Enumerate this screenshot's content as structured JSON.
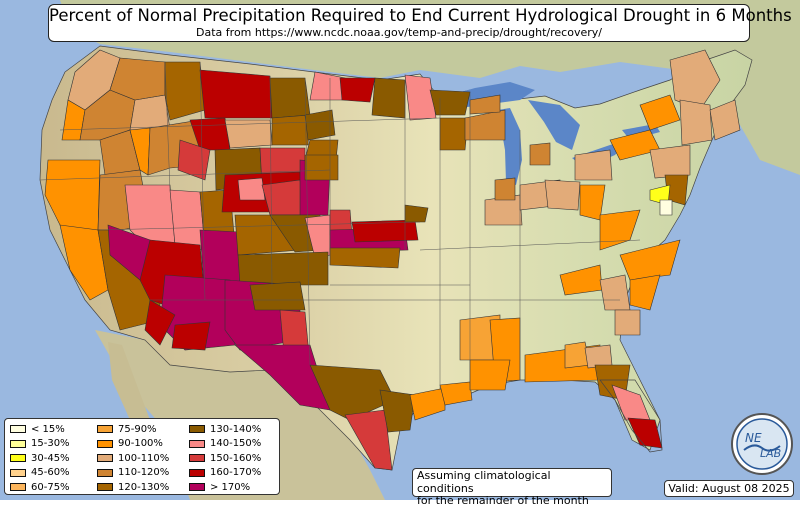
{
  "title": "Percent of Normal Precipitation Required to End Current Hydrological Drought in 6 Months",
  "subtitle": "Data from https://www.ncdc.noaa.gov/temp-and-precip/drought/recovery/",
  "legend": [
    {
      "label": "< 15%",
      "color": "#fffee0"
    },
    {
      "label": "15-30%",
      "color": "#ffff99"
    },
    {
      "label": "30-45%",
      "color": "#ffff1a"
    },
    {
      "label": "45-60%",
      "color": "#ffd18c"
    },
    {
      "label": "60-75%",
      "color": "#fcb55c"
    },
    {
      "label": "75-90%",
      "color": "#f7a335"
    },
    {
      "label": "90-100%",
      "color": "#ff9200"
    },
    {
      "label": "100-110%",
      "color": "#e2ab79"
    },
    {
      "label": "110-120%",
      "color": "#cf8432"
    },
    {
      "label": "120-130%",
      "color": "#a56500"
    },
    {
      "label": "130-140%",
      "color": "#8a5a00"
    },
    {
      "label": "140-150%",
      "color": "#f98987"
    },
    {
      "label": "150-160%",
      "color": "#d53a3a"
    },
    {
      "label": "160-170%",
      "color": "#bb0000"
    },
    {
      "label": "> 170%",
      "color": "#b2005b"
    }
  ],
  "note": {
    "line1": "Assuming climatological conditions",
    "line2": "for the remainder of the month"
  },
  "valid": "Valid: August 08 2025",
  "logo": {
    "text1": "NE",
    "text2": "LAB"
  },
  "colors": {
    "ocean": "#9ab8e0",
    "land": "#e6dfb4",
    "foreign_land": "#cfcfa4",
    "lakes": "#5b86c8"
  }
}
